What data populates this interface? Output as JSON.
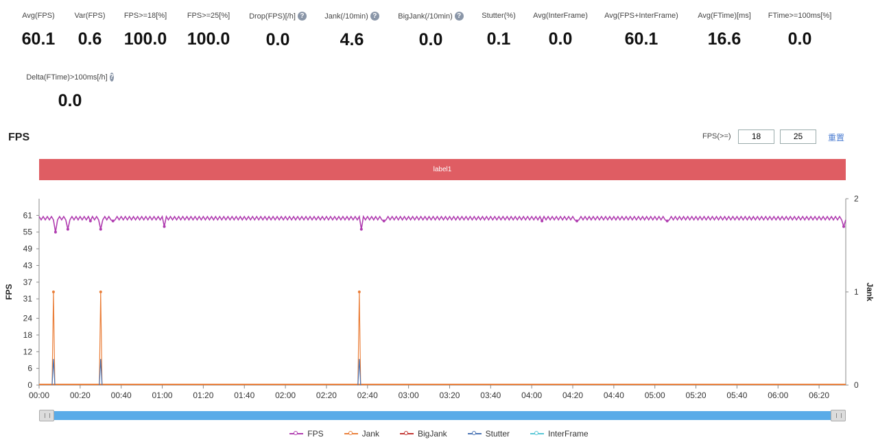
{
  "stats": [
    {
      "label": "Avg(FPS)",
      "value": "60.1",
      "help": false
    },
    {
      "label": "Var(FPS)",
      "value": "0.6",
      "help": false
    },
    {
      "label": "FPS>=18[%]",
      "value": "100.0",
      "help": false
    },
    {
      "label": "FPS>=25[%]",
      "value": "100.0",
      "help": false
    },
    {
      "label": "Drop(FPS)[/h]",
      "value": "0.0",
      "help": true
    },
    {
      "label": "Jank(/10min)",
      "value": "4.6",
      "help": true
    },
    {
      "label": "BigJank(/10min)",
      "value": "0.0",
      "help": true
    },
    {
      "label": "Stutter(%)",
      "value": "0.1",
      "help": false
    },
    {
      "label": "Avg(InterFrame)",
      "value": "0.0",
      "help": false
    },
    {
      "label": "Avg(FPS+InterFrame)",
      "value": "60.1",
      "help": false
    },
    {
      "label": "Avg(FTime)[ms]",
      "value": "16.6",
      "help": false
    },
    {
      "label": "FTime>=100ms[%]",
      "value": "0.0",
      "help": false
    },
    {
      "label": "Delta(FTime)>100ms[/h]",
      "value": "0.0",
      "help": true
    }
  ],
  "help_glyph": "?",
  "filter": {
    "label": "FPS(>=)",
    "value1": "18",
    "value2": "25",
    "reset_label": "重置"
  },
  "label_bar": {
    "text": "label1"
  },
  "chart_data": {
    "type": "line",
    "title": "FPS",
    "ylabel_left": "FPS",
    "ylabel_right": "Jank",
    "left_ticks": [
      0,
      6,
      12,
      18,
      24,
      31,
      37,
      43,
      49,
      55,
      61
    ],
    "left_max": 67,
    "right_ticks": [
      0,
      1,
      2
    ],
    "right_max": 2,
    "x_ticks": [
      "00:00",
      "00:20",
      "00:40",
      "01:00",
      "01:20",
      "01:40",
      "02:00",
      "02:20",
      "02:40",
      "03:00",
      "03:20",
      "03:40",
      "04:00",
      "04:20",
      "04:40",
      "05:00",
      "05:20",
      "05:40",
      "06:00",
      "06:20"
    ],
    "x_max_seconds": 393,
    "fps_baseline": 60,
    "fps_dips": [
      {
        "t": 8,
        "fps": 55
      },
      {
        "t": 14,
        "fps": 56
      },
      {
        "t": 25,
        "fps": 59
      },
      {
        "t": 30,
        "fps": 56
      },
      {
        "t": 36,
        "fps": 59
      },
      {
        "t": 61,
        "fps": 57
      },
      {
        "t": 157,
        "fps": 56
      },
      {
        "t": 168,
        "fps": 59
      },
      {
        "t": 245,
        "fps": 59
      },
      {
        "t": 262,
        "fps": 59
      },
      {
        "t": 306,
        "fps": 59
      },
      {
        "t": 392,
        "fps": 57
      }
    ],
    "jank_spikes": [
      {
        "t": 7,
        "value": 1
      },
      {
        "t": 30,
        "value": 1
      },
      {
        "t": 156,
        "value": 1
      }
    ],
    "stutter_spikes": [
      {
        "t": 7,
        "value": 0.28
      },
      {
        "t": 30,
        "value": 0.28
      },
      {
        "t": 156,
        "value": 0.28
      }
    ],
    "series": [
      {
        "name": "FPS",
        "color": "#b03cb0"
      },
      {
        "name": "Jank",
        "color": "#ea7f3a"
      },
      {
        "name": "BigJank",
        "color": "#c23531"
      },
      {
        "name": "Stutter",
        "color": "#4a74b4"
      },
      {
        "name": "InterFrame",
        "color": "#56c7d6"
      }
    ]
  }
}
